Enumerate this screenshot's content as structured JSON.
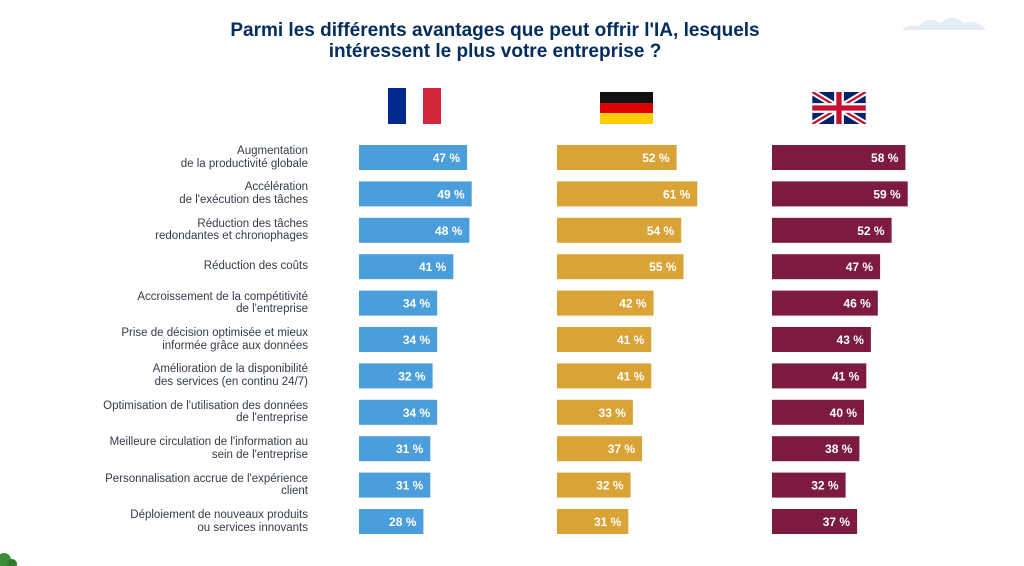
{
  "header": {
    "title_line1": "Parmi les différents avantages que peut offrir l'IA, lesquels",
    "title_line2": "intéressent le plus votre entreprise ?"
  },
  "countries": [
    {
      "name": "France",
      "icon": "france-flag-icon"
    },
    {
      "name": "Germany",
      "icon": "germany-flag-icon"
    },
    {
      "name": "United Kingdom",
      "icon": "uk-flag-icon"
    }
  ],
  "colors": {
    "france": "#4a9edb",
    "germany": "#d9a335",
    "uk": "#7c1a3f",
    "title": "#032d60"
  },
  "chart_data": {
    "type": "bar",
    "orientation": "horizontal",
    "title": "Parmi les différents avantages que peut offrir l'IA, lesquels intéressent le plus votre entreprise ?",
    "unit": "%",
    "value_suffix": " %",
    "xlim": [
      0,
      100
    ],
    "categories": [
      {
        "lines": [
          "Augmentation",
          "de la productivité globale"
        ]
      },
      {
        "lines": [
          "Accélération",
          "de l'exécution des tâches"
        ]
      },
      {
        "lines": [
          "Réduction des tâches",
          "redondantes et chronophages"
        ]
      },
      {
        "lines": [
          "Réduction des coûts"
        ]
      },
      {
        "lines": [
          "Accroissement de la compétitivité",
          "de l'entreprise"
        ]
      },
      {
        "lines": [
          "Prise de décision optimisée et mieux",
          "informée grâce aux données"
        ]
      },
      {
        "lines": [
          "Amélioration de la disponibilité",
          "des services (en continu 24/7)"
        ]
      },
      {
        "lines": [
          "Optimisation de l'utilisation des données",
          "de l'entreprise"
        ]
      },
      {
        "lines": [
          "Meilleure circulation de l'information au",
          "sein de l'entreprise"
        ]
      },
      {
        "lines": [
          "Personnalisation accrue de l'expérience",
          "client"
        ]
      },
      {
        "lines": [
          "Déploiement de nouveaux produits",
          "ou services innovants"
        ]
      }
    ],
    "series": [
      {
        "name": "France",
        "color": "#4a9edb",
        "values": [
          47,
          49,
          48,
          41,
          34,
          34,
          32,
          34,
          31,
          31,
          28
        ]
      },
      {
        "name": "Allemagne",
        "color": "#d9a335",
        "values": [
          52,
          61,
          54,
          55,
          42,
          41,
          41,
          33,
          37,
          32,
          31
        ]
      },
      {
        "name": "Royaume-Uni",
        "color": "#7c1a3f",
        "values": [
          58,
          59,
          52,
          47,
          46,
          43,
          41,
          40,
          38,
          32,
          37
        ]
      }
    ]
  }
}
